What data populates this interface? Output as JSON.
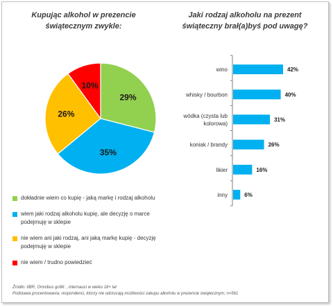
{
  "left_title": "Kupując alkohol w prezencie świątecznym zwykle:",
  "right_title": "Jaki rodzaj alkoholu na prezent świąteczny brał(a)byś pod uwagę?",
  "chart_data": [
    {
      "type": "pie",
      "title": "Kupując alkohol w prezencie świątecznym zwykle:",
      "slices": [
        {
          "label": "dokładnie wiem co kupię - jaką markę i rodzaj alkoholu",
          "value": 29,
          "value_label": "29%",
          "color": "#92d050"
        },
        {
          "label": "wiem jaki rodzaj alkoholu kupię, ale decyzję o marce podejmuję w sklepie",
          "value": 35,
          "value_label": "35%",
          "color": "#00b0f0"
        },
        {
          "label": "nie wiem ani jaki rodzaj, ani jaką markę kupię - decyzję podejmuję w sklepie",
          "value": 26,
          "value_label": "26%",
          "color": "#ffc000"
        },
        {
          "label": "nie wiem / trudno powiedzieć",
          "value": 10,
          "value_label": "10%",
          "color": "#ff0000"
        }
      ],
      "start_angle_deg": 0,
      "direction": "clockwise",
      "legend_position": "bottom"
    },
    {
      "type": "bar",
      "orientation": "horizontal",
      "title": "Jaki rodzaj alkoholu na prezent świąteczny brał(a)byś pod uwagę?",
      "categories": [
        "wino",
        "whisky / bourbon",
        "wódka (czysta lub kolorowa)",
        "koniak / brandy",
        "likier",
        "inny"
      ],
      "category_lines": [
        [
          "wino"
        ],
        [
          "whisky / bourbon"
        ],
        [
          "wódka (czysta lub",
          "kolorowa)"
        ],
        [
          "koniak / brandy"
        ],
        [
          "likier"
        ],
        [
          "inny"
        ]
      ],
      "values": [
        42,
        40,
        31,
        26,
        16,
        6
      ],
      "value_labels": [
        "42%",
        "40%",
        "31%",
        "26%",
        "16%",
        "6%"
      ],
      "color": "#00b0f0",
      "xlim": [
        0,
        50
      ],
      "grid": false
    }
  ],
  "footnote": {
    "line1": "Źródło: IIBR, Omnibus go96: , internauci w wieku 18+ lat",
    "line2": "Podstawa procentowania: respondenci, którzy nie odrzucają możliwości zakupu alkoholu w prezencie świątecznym; n=561"
  }
}
